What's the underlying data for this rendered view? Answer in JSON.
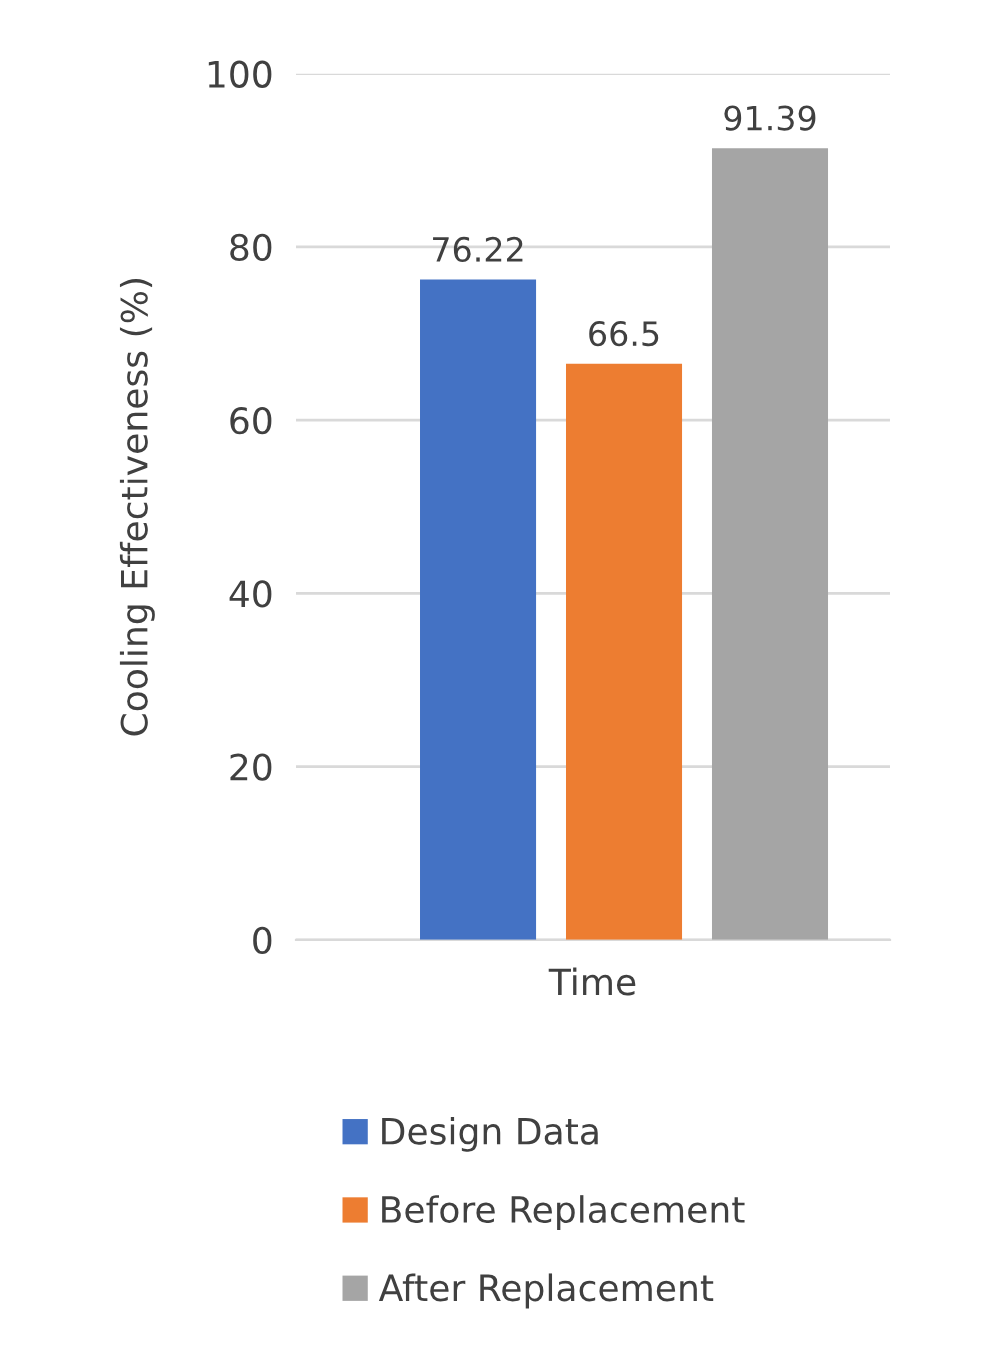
{
  "chart_data": {
    "type": "bar",
    "ylabel": "Cooling Effectiveness (%)",
    "xlabel": "Time",
    "categories": [
      null,
      null,
      null
    ],
    "series": [
      {
        "name": "Design Data",
        "color": "#4472c4",
        "values": [
          76.22,
          null,
          null
        ]
      },
      {
        "name": "Before Replacement",
        "color": "#ed7d31",
        "values": [
          null,
          66.5,
          null
        ]
      },
      {
        "name": "After Replacement",
        "color": "#a5a5a5",
        "values": [
          null,
          null,
          91.39
        ]
      }
    ],
    "ylim": [
      0,
      100
    ],
    "yticks": [
      0,
      20,
      40,
      60,
      80,
      100
    ],
    "grid": "y",
    "legend": "bottom",
    "data_labels": true
  }
}
